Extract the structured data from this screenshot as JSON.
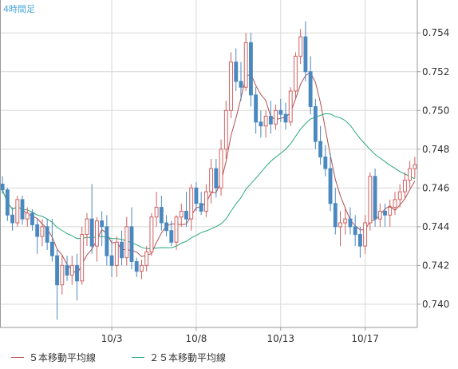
{
  "timeframe_label": "4時間足",
  "legend": [
    {
      "label": "５本移動平均線",
      "color": "#b05050"
    },
    {
      "label": "２５本移動平均線",
      "color": "#2aa87a"
    }
  ],
  "colors": {
    "up": "#d06060",
    "down": "#4a88c0",
    "grid": "#d8d8d8",
    "axis": "#999999",
    "label": "#333333",
    "timeframe": "#4aa6d8"
  },
  "chart_data": {
    "type": "candlestick",
    "timeframe": "4時間足",
    "ylim": [
      0.7388,
      0.7557
    ],
    "y_ticks": [
      "0.754",
      "0.752",
      "0.750",
      "0.748",
      "0.746",
      "0.744",
      "0.742",
      "0.740"
    ],
    "x_tick_labels": [
      {
        "label": "10/3",
        "candle_index": 22
      },
      {
        "label": "10/8",
        "candle_index": 39
      },
      {
        "label": "10/13",
        "candle_index": 56
      },
      {
        "label": "10/17",
        "candle_index": 73
      }
    ],
    "candles": [
      [
        0.7462,
        0.7466,
        0.7457,
        0.7459
      ],
      [
        0.7459,
        0.746,
        0.7443,
        0.7446
      ],
      [
        0.7446,
        0.745,
        0.7438,
        0.7442
      ],
      [
        0.7442,
        0.7456,
        0.744,
        0.7454
      ],
      [
        0.7454,
        0.7456,
        0.7441,
        0.7444
      ],
      [
        0.7444,
        0.745,
        0.744,
        0.7447
      ],
      [
        0.7447,
        0.7449,
        0.7438,
        0.7441
      ],
      [
        0.7441,
        0.7444,
        0.7426,
        0.7435
      ],
      [
        0.7435,
        0.7444,
        0.743,
        0.744
      ],
      [
        0.744,
        0.7444,
        0.7428,
        0.7432
      ],
      [
        0.7432,
        0.7444,
        0.7422,
        0.7425
      ],
      [
        0.7425,
        0.7428,
        0.7392,
        0.741
      ],
      [
        0.741,
        0.7425,
        0.7405,
        0.742
      ],
      [
        0.742,
        0.7425,
        0.7412,
        0.7415
      ],
      [
        0.7415,
        0.7425,
        0.741,
        0.742
      ],
      [
        0.742,
        0.7426,
        0.7402,
        0.7412
      ],
      [
        0.7412,
        0.744,
        0.741,
        0.7436
      ],
      [
        0.7436,
        0.7447,
        0.743,
        0.7444
      ],
      [
        0.7444,
        0.7462,
        0.7426,
        0.743
      ],
      [
        0.743,
        0.7445,
        0.7422,
        0.7443
      ],
      [
        0.7443,
        0.7448,
        0.743,
        0.744
      ],
      [
        0.744,
        0.7446,
        0.742,
        0.7425
      ],
      [
        0.7425,
        0.7433,
        0.7414,
        0.742
      ],
      [
        0.742,
        0.7435,
        0.7414,
        0.7432
      ],
      [
        0.7432,
        0.7438,
        0.742,
        0.7424
      ],
      [
        0.7424,
        0.7445,
        0.742,
        0.744
      ],
      [
        0.744,
        0.745,
        0.7418,
        0.7422
      ],
      [
        0.7422,
        0.7424,
        0.7414,
        0.7417
      ],
      [
        0.7417,
        0.7423,
        0.7413,
        0.742
      ],
      [
        0.742,
        0.743,
        0.7417,
        0.7427
      ],
      [
        0.7427,
        0.7447,
        0.7425,
        0.7445
      ],
      [
        0.7445,
        0.7458,
        0.744,
        0.745
      ],
      [
        0.745,
        0.7456,
        0.7438,
        0.7442
      ],
      [
        0.7442,
        0.7446,
        0.7435,
        0.7438
      ],
      [
        0.7438,
        0.7443,
        0.743,
        0.7432
      ],
      [
        0.7432,
        0.7446,
        0.7428,
        0.7445
      ],
      [
        0.7445,
        0.7452,
        0.744,
        0.7448
      ],
      [
        0.7448,
        0.7458,
        0.744,
        0.7444
      ],
      [
        0.7444,
        0.7462,
        0.7438,
        0.746
      ],
      [
        0.746,
        0.7463,
        0.7448,
        0.7452
      ],
      [
        0.7452,
        0.7458,
        0.7446,
        0.7448
      ],
      [
        0.7448,
        0.7462,
        0.7445,
        0.7458
      ],
      [
        0.7458,
        0.7475,
        0.7452,
        0.747
      ],
      [
        0.747,
        0.7475,
        0.7455,
        0.746
      ],
      [
        0.746,
        0.7485,
        0.7456,
        0.748
      ],
      [
        0.748,
        0.7505,
        0.7475,
        0.75
      ],
      [
        0.75,
        0.753,
        0.7496,
        0.7525
      ],
      [
        0.7525,
        0.7532,
        0.751,
        0.7515
      ],
      [
        0.7515,
        0.7525,
        0.7505,
        0.7512
      ],
      [
        0.7512,
        0.754,
        0.751,
        0.7535
      ],
      [
        0.7535,
        0.754,
        0.7502,
        0.7508
      ],
      [
        0.7508,
        0.7512,
        0.7488,
        0.7494
      ],
      [
        0.7494,
        0.75,
        0.7486,
        0.7492
      ],
      [
        0.7492,
        0.75,
        0.7486,
        0.7497
      ],
      [
        0.7497,
        0.7505,
        0.7488,
        0.7493
      ],
      [
        0.7493,
        0.7503,
        0.749,
        0.75
      ],
      [
        0.75,
        0.7506,
        0.7494,
        0.7498
      ],
      [
        0.7498,
        0.7504,
        0.749,
        0.7494
      ],
      [
        0.7494,
        0.7512,
        0.7492,
        0.751
      ],
      [
        0.751,
        0.753,
        0.7506,
        0.7528
      ],
      [
        0.7528,
        0.7542,
        0.7524,
        0.7538
      ],
      [
        0.7538,
        0.7546,
        0.7515,
        0.752
      ],
      [
        0.752,
        0.7528,
        0.7498,
        0.7502
      ],
      [
        0.7502,
        0.7506,
        0.748,
        0.7484
      ],
      [
        0.7484,
        0.7492,
        0.7472,
        0.7476
      ],
      [
        0.7476,
        0.7482,
        0.7466,
        0.747
      ],
      [
        0.747,
        0.7478,
        0.7448,
        0.7452
      ],
      [
        0.7452,
        0.746,
        0.7436,
        0.744
      ],
      [
        0.744,
        0.7448,
        0.743,
        0.7442
      ],
      [
        0.7442,
        0.745,
        0.7436,
        0.7444
      ],
      [
        0.7444,
        0.745,
        0.7436,
        0.744
      ],
      [
        0.744,
        0.7446,
        0.743,
        0.7436
      ],
      [
        0.7436,
        0.744,
        0.7424,
        0.743
      ],
      [
        0.743,
        0.7446,
        0.7426,
        0.7442
      ],
      [
        0.7442,
        0.7468,
        0.7438,
        0.7466
      ],
      [
        0.7466,
        0.747,
        0.744,
        0.7444
      ],
      [
        0.7444,
        0.7452,
        0.744,
        0.7448
      ],
      [
        0.7448,
        0.7452,
        0.744,
        0.7446
      ],
      [
        0.7446,
        0.7454,
        0.744,
        0.745
      ],
      [
        0.745,
        0.7458,
        0.7446,
        0.7454
      ],
      [
        0.7454,
        0.7462,
        0.745,
        0.7458
      ],
      [
        0.7458,
        0.7468,
        0.7454,
        0.7464
      ],
      [
        0.7464,
        0.7474,
        0.746,
        0.747
      ],
      [
        0.747,
        0.7476,
        0.7465,
        0.7472
      ]
    ],
    "series": [
      {
        "name": "５本移動平均線",
        "type": "sma",
        "period": 5
      },
      {
        "name": "２５本移動平均線",
        "type": "sma",
        "period": 25
      }
    ]
  }
}
